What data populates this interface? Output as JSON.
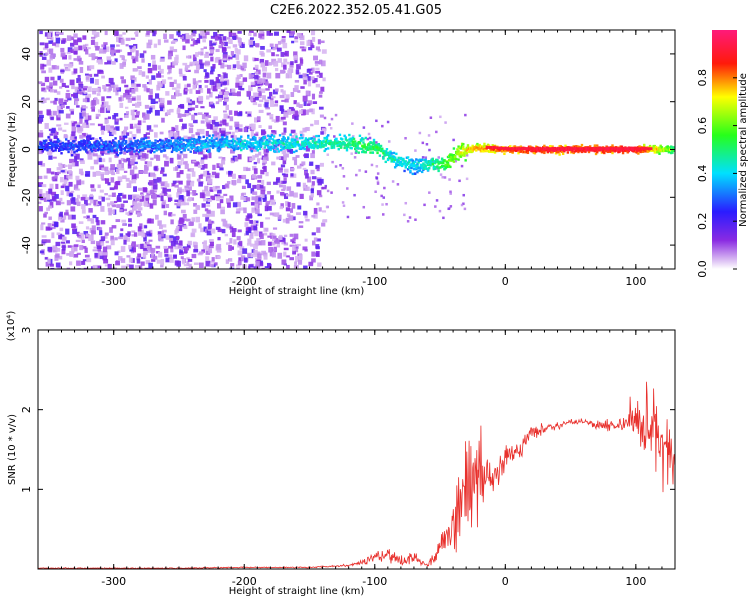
{
  "page": {
    "title": "C2E6.2022.352.05.41.G05"
  },
  "colors": {
    "snr_line": "#e8302c",
    "ridge_core": "#ff0000",
    "cloud": "#8a2be2",
    "axis": "#000000"
  },
  "chart_data": [
    {
      "type": "heatmap",
      "title": "C2E6.2022.352.05.41.G05",
      "xlabel": "Height of straight line (km)",
      "ylabel": "Frequency (Hz)",
      "xlim": [
        -358,
        130
      ],
      "ylim": [
        -50,
        50
      ],
      "x_ticks": [
        -300,
        -200,
        -100,
        0,
        100
      ],
      "y_ticks": [
        -40,
        -20,
        0,
        20,
        40
      ],
      "grid": false,
      "colorbar": {
        "label": "Normalized spectral amplitude",
        "range": [
          0,
          1
        ],
        "ticks": [
          "0.0",
          "0.2",
          "0.4",
          "0.6",
          "0.8"
        ],
        "colormap": "white-violet-blue-cyan-green-yellow-red-pink"
      },
      "ridge": {
        "x": [
          -358,
          -300,
          -250,
          -200,
          -150,
          -120,
          -100,
          -85,
          -70,
          -55,
          -45,
          -35,
          -25,
          -10,
          0,
          25,
          50,
          75,
          100,
          130
        ],
        "frequency": [
          2,
          2,
          2.5,
          3,
          3,
          3,
          1,
          -4,
          -6,
          -6,
          -5,
          0,
          1,
          1,
          0.5,
          0.5,
          0.5,
          0.5,
          0.5,
          0.5
        ],
        "amplitude": [
          0.25,
          0.3,
          0.35,
          0.4,
          0.45,
          0.5,
          0.55,
          0.45,
          0.4,
          0.5,
          0.6,
          0.7,
          0.8,
          0.85,
          0.9,
          0.95,
          0.95,
          0.95,
          0.95,
          0.55
        ]
      }
    },
    {
      "type": "line",
      "xlabel": "Height of straight line (km)",
      "ylabel": "SNR (10 * v/v)",
      "y_multiplier": "(x10⁴)",
      "xlim": [
        -358,
        130
      ],
      "ylim": [
        0,
        3
      ],
      "x_ticks": [
        -300,
        -200,
        -100,
        0,
        100
      ],
      "y_ticks": [
        1,
        2,
        3
      ],
      "grid": false,
      "series": [
        {
          "x": [
            -358,
            -300,
            -250,
            -200,
            -150,
            -125,
            -110,
            -100,
            -90,
            -80,
            -70,
            -60,
            -50,
            -40,
            -35,
            -30,
            -25,
            -20,
            -15,
            -10,
            0,
            10,
            20,
            30,
            40,
            50,
            60,
            70,
            80,
            90,
            100,
            110,
            115,
            120,
            125,
            130
          ],
          "values": [
            0.01,
            0.01,
            0.01,
            0.02,
            0.02,
            0.04,
            0.08,
            0.15,
            0.2,
            0.1,
            0.15,
            0.05,
            0.25,
            0.5,
            0.8,
            1.0,
            1.3,
            1.1,
            1.2,
            1.1,
            1.4,
            1.5,
            1.7,
            1.75,
            1.8,
            1.85,
            1.85,
            1.8,
            1.8,
            1.85,
            1.9,
            1.8,
            1.6,
            1.5,
            1.5,
            1.4
          ],
          "spread": [
            0.01,
            0.01,
            0.01,
            0.01,
            0.01,
            0.02,
            0.05,
            0.1,
            0.12,
            0.1,
            0.12,
            0.05,
            0.2,
            0.4,
            0.8,
            1.0,
            1.0,
            0.9,
            0.5,
            0.3,
            0.25,
            0.2,
            0.12,
            0.1,
            0.06,
            0.05,
            0.05,
            0.08,
            0.1,
            0.15,
            0.35,
            0.8,
            0.9,
            0.7,
            0.5,
            0.4
          ]
        }
      ]
    }
  ]
}
